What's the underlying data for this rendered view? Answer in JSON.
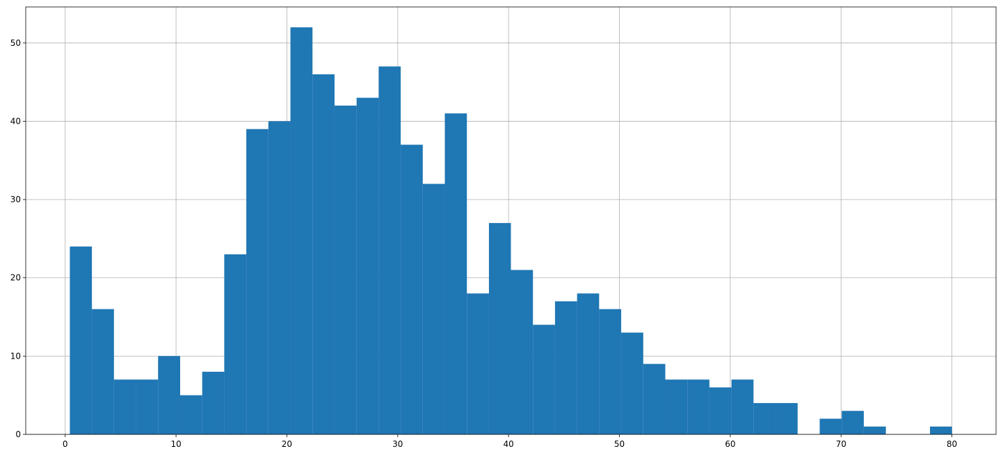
{
  "chart_data": {
    "type": "histogram",
    "bins": [
      0.42,
      2.41,
      4.4,
      6.39,
      8.38,
      10.37,
      12.36,
      14.35,
      16.34,
      18.33,
      20.32,
      22.31,
      24.3,
      26.29,
      28.28,
      30.27,
      32.26,
      34.25,
      36.24,
      38.23,
      40.21,
      42.2,
      44.19,
      46.18,
      48.17,
      50.16,
      52.15,
      54.14,
      56.13,
      58.12,
      60.11,
      62.1,
      64.09,
      66.08,
      68.07,
      70.06,
      72.05,
      74.04,
      76.03,
      78.02,
      80
    ],
    "values": [
      24,
      16,
      7,
      7,
      10,
      5,
      8,
      23,
      39,
      40,
      52,
      46,
      42,
      43,
      47,
      37,
      32,
      41,
      18,
      27,
      21,
      14,
      17,
      18,
      16,
      13,
      9,
      7,
      7,
      6,
      7,
      4,
      4,
      0,
      2,
      3,
      1,
      0,
      0,
      1
    ],
    "color": "#1f77b4",
    "xlim": [
      -3.56,
      83.98
    ],
    "xticks": [
      0,
      10,
      20,
      30,
      40,
      50,
      60,
      70,
      80
    ],
    "ylim": [
      0,
      54.6
    ],
    "yticks": [
      0,
      10,
      20,
      30,
      40,
      50
    ],
    "grid": true
  }
}
